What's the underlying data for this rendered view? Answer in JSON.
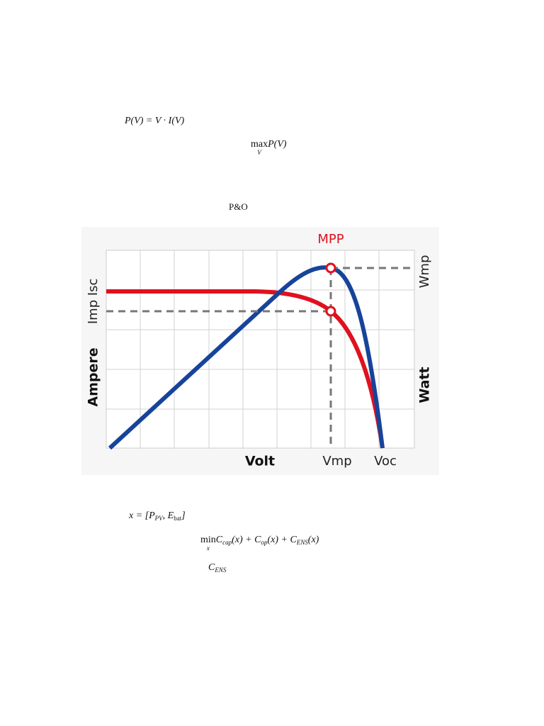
{
  "equations": [
    {
      "parts": [
        "P(V) = V · I(V)"
      ]
    },
    {
      "parts": [
        "max",
        "V",
        "P(V)"
      ]
    },
    {
      "parts": [
        "x = [P",
        "PV",
        ", E",
        "bat",
        "]"
      ]
    },
    {
      "parts": [
        "min",
        "x",
        "C",
        "cap",
        "(x) + C",
        "op",
        "(x) + C",
        "ENS",
        "(x)"
      ]
    },
    {
      "parts": [
        "C",
        "ENS"
      ]
    }
  ],
  "method": "P&O",
  "figure": {
    "mpp_label": "MPP",
    "left_axis_title": "Ampere",
    "left_labels": [
      "Imp",
      "Isc"
    ],
    "right_label": "Wmp",
    "right_axis_title": "Watt",
    "x_axis_title": "Volt",
    "x_labels": [
      "Vmp",
      "Voc"
    ]
  }
}
